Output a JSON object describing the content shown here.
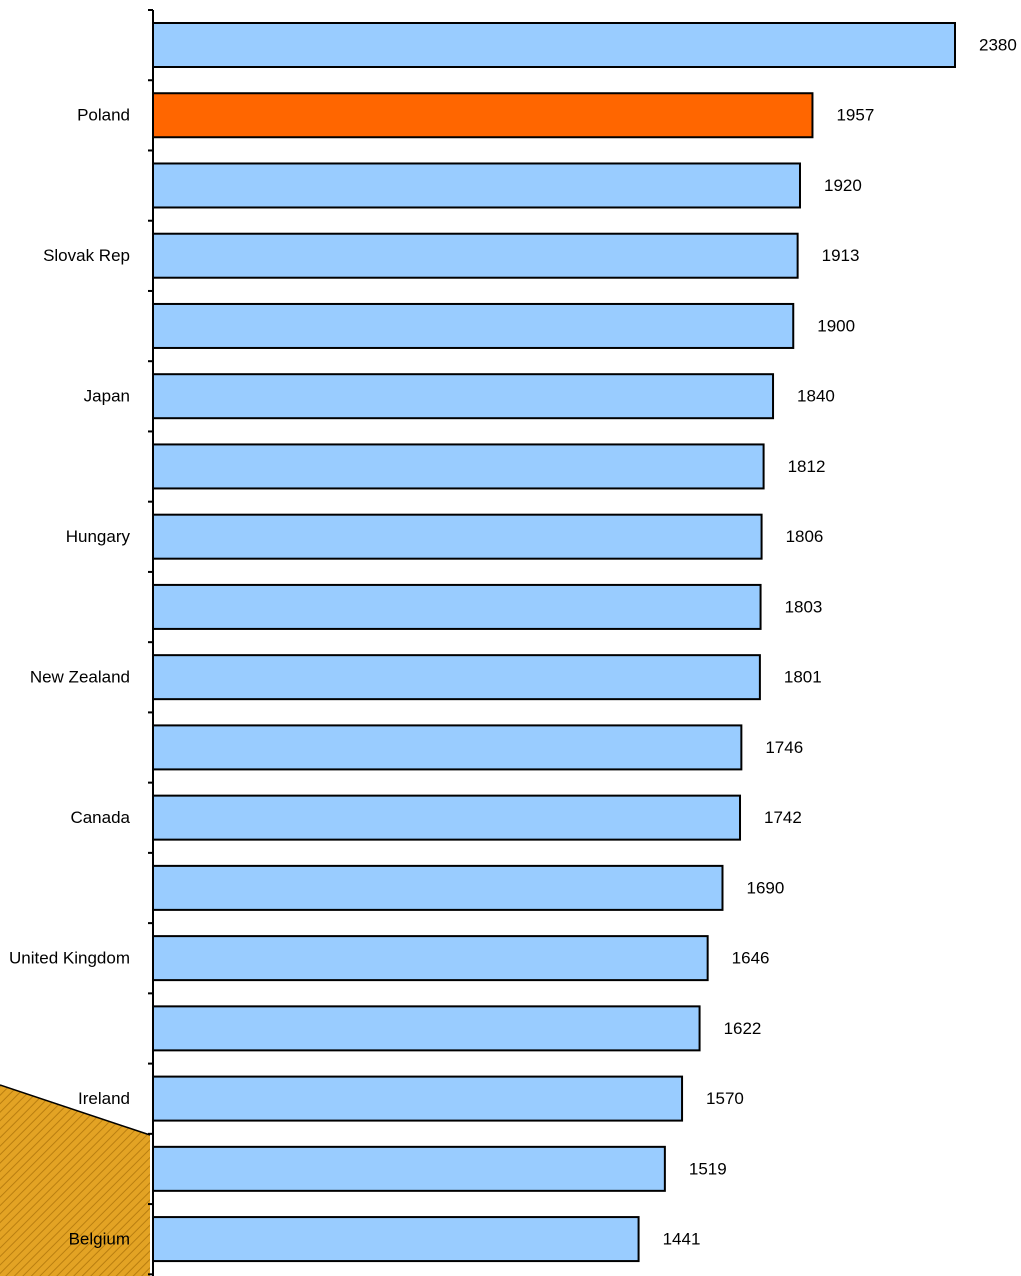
{
  "chart_data": {
    "type": "bar",
    "orientation": "horizontal",
    "categories": [
      null,
      "Poland",
      null,
      "Slovak Rep",
      null,
      "Japan",
      null,
      "Hungary",
      null,
      "New Zealand",
      null,
      "Canada",
      null,
      "United Kingdom",
      null,
      "Ireland",
      null,
      "Belgium"
    ],
    "values": [
      2380,
      1957,
      1920,
      1913,
      1900,
      1840,
      1812,
      1806,
      1803,
      1801,
      1746,
      1742,
      1690,
      1646,
      1622,
      1570,
      1519,
      1441
    ],
    "colors": [
      "#99ccff",
      "#ff6600",
      "#99ccff",
      "#99ccff",
      "#99ccff",
      "#99ccff",
      "#99ccff",
      "#99ccff",
      "#99ccff",
      "#99ccff",
      "#99ccff",
      "#99ccff",
      "#99ccff",
      "#99ccff",
      "#99ccff",
      "#99ccff",
      "#99ccff",
      "#99ccff"
    ]
  }
}
